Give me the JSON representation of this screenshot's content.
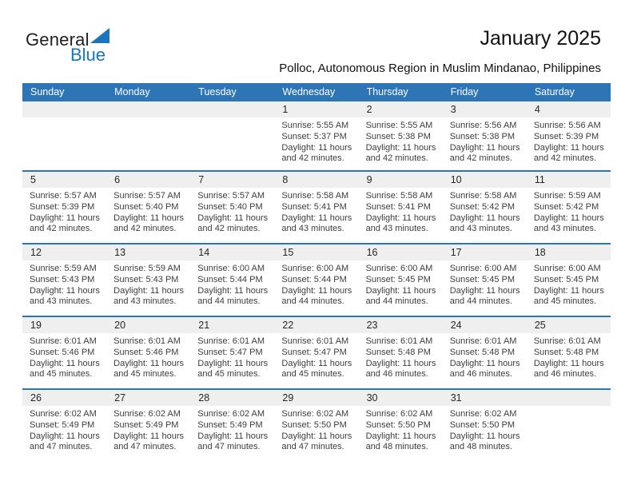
{
  "logo": {
    "line1": "General",
    "line2": "Blue"
  },
  "header": {
    "title": "January 2025",
    "subtitle": "Polloc, Autonomous Region in Muslim Mindanao, Philippines"
  },
  "labels": {
    "sunrise": "Sunrise:",
    "sunset": "Sunset:",
    "daylight": "Daylight:"
  },
  "colors": {
    "header_blue": "#2E75B6",
    "row_line_blue": "#2E75B6",
    "band_gray": "#EFEFEF",
    "logo_blue": "#1B75BC"
  },
  "calendar": {
    "weekdays": [
      "Sunday",
      "Monday",
      "Tuesday",
      "Wednesday",
      "Thursday",
      "Friday",
      "Saturday"
    ],
    "weeks": [
      [
        null,
        null,
        null,
        {
          "day": "1",
          "sunrise": "5:55 AM",
          "sunset": "5:37 PM",
          "daylight": "11 hours and 42 minutes."
        },
        {
          "day": "2",
          "sunrise": "5:55 AM",
          "sunset": "5:38 PM",
          "daylight": "11 hours and 42 minutes."
        },
        {
          "day": "3",
          "sunrise": "5:56 AM",
          "sunset": "5:38 PM",
          "daylight": "11 hours and 42 minutes."
        },
        {
          "day": "4",
          "sunrise": "5:56 AM",
          "sunset": "5:39 PM",
          "daylight": "11 hours and 42 minutes."
        }
      ],
      [
        {
          "day": "5",
          "sunrise": "5:57 AM",
          "sunset": "5:39 PM",
          "daylight": "11 hours and 42 minutes."
        },
        {
          "day": "6",
          "sunrise": "5:57 AM",
          "sunset": "5:40 PM",
          "daylight": "11 hours and 42 minutes."
        },
        {
          "day": "7",
          "sunrise": "5:57 AM",
          "sunset": "5:40 PM",
          "daylight": "11 hours and 42 minutes."
        },
        {
          "day": "8",
          "sunrise": "5:58 AM",
          "sunset": "5:41 PM",
          "daylight": "11 hours and 43 minutes."
        },
        {
          "day": "9",
          "sunrise": "5:58 AM",
          "sunset": "5:41 PM",
          "daylight": "11 hours and 43 minutes."
        },
        {
          "day": "10",
          "sunrise": "5:58 AM",
          "sunset": "5:42 PM",
          "daylight": "11 hours and 43 minutes."
        },
        {
          "day": "11",
          "sunrise": "5:59 AM",
          "sunset": "5:42 PM",
          "daylight": "11 hours and 43 minutes."
        }
      ],
      [
        {
          "day": "12",
          "sunrise": "5:59 AM",
          "sunset": "5:43 PM",
          "daylight": "11 hours and 43 minutes."
        },
        {
          "day": "13",
          "sunrise": "5:59 AM",
          "sunset": "5:43 PM",
          "daylight": "11 hours and 43 minutes."
        },
        {
          "day": "14",
          "sunrise": "6:00 AM",
          "sunset": "5:44 PM",
          "daylight": "11 hours and 44 minutes."
        },
        {
          "day": "15",
          "sunrise": "6:00 AM",
          "sunset": "5:44 PM",
          "daylight": "11 hours and 44 minutes."
        },
        {
          "day": "16",
          "sunrise": "6:00 AM",
          "sunset": "5:45 PM",
          "daylight": "11 hours and 44 minutes."
        },
        {
          "day": "17",
          "sunrise": "6:00 AM",
          "sunset": "5:45 PM",
          "daylight": "11 hours and 44 minutes."
        },
        {
          "day": "18",
          "sunrise": "6:00 AM",
          "sunset": "5:45 PM",
          "daylight": "11 hours and 45 minutes."
        }
      ],
      [
        {
          "day": "19",
          "sunrise": "6:01 AM",
          "sunset": "5:46 PM",
          "daylight": "11 hours and 45 minutes."
        },
        {
          "day": "20",
          "sunrise": "6:01 AM",
          "sunset": "5:46 PM",
          "daylight": "11 hours and 45 minutes."
        },
        {
          "day": "21",
          "sunrise": "6:01 AM",
          "sunset": "5:47 PM",
          "daylight": "11 hours and 45 minutes."
        },
        {
          "day": "22",
          "sunrise": "6:01 AM",
          "sunset": "5:47 PM",
          "daylight": "11 hours and 45 minutes."
        },
        {
          "day": "23",
          "sunrise": "6:01 AM",
          "sunset": "5:48 PM",
          "daylight": "11 hours and 46 minutes."
        },
        {
          "day": "24",
          "sunrise": "6:01 AM",
          "sunset": "5:48 PM",
          "daylight": "11 hours and 46 minutes."
        },
        {
          "day": "25",
          "sunrise": "6:01 AM",
          "sunset": "5:48 PM",
          "daylight": "11 hours and 46 minutes."
        }
      ],
      [
        {
          "day": "26",
          "sunrise": "6:02 AM",
          "sunset": "5:49 PM",
          "daylight": "11 hours and 47 minutes."
        },
        {
          "day": "27",
          "sunrise": "6:02 AM",
          "sunset": "5:49 PM",
          "daylight": "11 hours and 47 minutes."
        },
        {
          "day": "28",
          "sunrise": "6:02 AM",
          "sunset": "5:49 PM",
          "daylight": "11 hours and 47 minutes."
        },
        {
          "day": "29",
          "sunrise": "6:02 AM",
          "sunset": "5:50 PM",
          "daylight": "11 hours and 47 minutes."
        },
        {
          "day": "30",
          "sunrise": "6:02 AM",
          "sunset": "5:50 PM",
          "daylight": "11 hours and 48 minutes."
        },
        {
          "day": "31",
          "sunrise": "6:02 AM",
          "sunset": "5:50 PM",
          "daylight": "11 hours and 48 minutes."
        },
        null
      ]
    ]
  }
}
